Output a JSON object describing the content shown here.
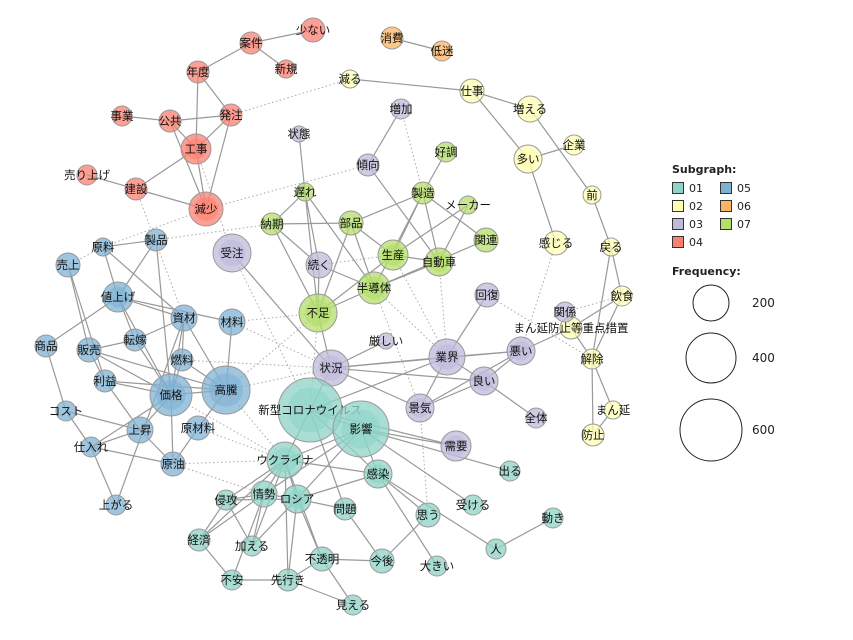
{
  "legend": {
    "subgraph_title": "Subgraph:",
    "frequency_title": "Frequency:",
    "groups": [
      {
        "id": "01",
        "color": "#8dd3c7"
      },
      {
        "id": "02",
        "color": "#ffffb3"
      },
      {
        "id": "03",
        "color": "#bebada"
      },
      {
        "id": "04",
        "color": "#fb8072"
      },
      {
        "id": "05",
        "color": "#80b1d3"
      },
      {
        "id": "06",
        "color": "#fdb462"
      },
      {
        "id": "07",
        "color": "#b3de69"
      }
    ],
    "frequency_values": [
      "200",
      "400",
      "600"
    ]
  },
  "nodes": [
    {
      "label": "少ない",
      "group": "04"
    },
    {
      "label": "案件",
      "group": "04"
    },
    {
      "label": "新規",
      "group": "04"
    },
    {
      "label": "年度",
      "group": "04"
    },
    {
      "label": "発注",
      "group": "04"
    },
    {
      "label": "事業",
      "group": "04"
    },
    {
      "label": "公共",
      "group": "04"
    },
    {
      "label": "工事",
      "group": "04"
    },
    {
      "label": "売り上げ",
      "group": "04"
    },
    {
      "label": "建設",
      "group": "04"
    },
    {
      "label": "減少",
      "group": "04"
    },
    {
      "label": "消費",
      "group": "06"
    },
    {
      "label": "低迷",
      "group": "06"
    },
    {
      "label": "減る",
      "group": "02"
    },
    {
      "label": "仕事",
      "group": "02"
    },
    {
      "label": "増える",
      "group": "02"
    },
    {
      "label": "企業",
      "group": "02"
    },
    {
      "label": "多い",
      "group": "02"
    },
    {
      "label": "前",
      "group": "02"
    },
    {
      "label": "感じる",
      "group": "02"
    },
    {
      "label": "戻る",
      "group": "02"
    },
    {
      "label": "飲食",
      "group": "02"
    },
    {
      "label": "まん延防止等重点措置",
      "group": "02"
    },
    {
      "label": "解除",
      "group": "02"
    },
    {
      "label": "まん延",
      "group": "02"
    },
    {
      "label": "防止",
      "group": "02"
    },
    {
      "label": "増加",
      "group": "03"
    },
    {
      "label": "状態",
      "group": "03"
    },
    {
      "label": "傾向",
      "group": "03"
    },
    {
      "label": "受注",
      "group": "03"
    },
    {
      "label": "続く",
      "group": "03"
    },
    {
      "label": "厳しい",
      "group": "03"
    },
    {
      "label": "状況",
      "group": "03"
    },
    {
      "label": "回復",
      "group": "03"
    },
    {
      "label": "関係",
      "group": "03"
    },
    {
      "label": "業界",
      "group": "03"
    },
    {
      "label": "悪い",
      "group": "03"
    },
    {
      "label": "良い",
      "group": "03"
    },
    {
      "label": "景気",
      "group": "03"
    },
    {
      "label": "全体",
      "group": "03"
    },
    {
      "label": "需要",
      "group": "03"
    },
    {
      "label": "好調",
      "group": "07"
    },
    {
      "label": "遅れ",
      "group": "07"
    },
    {
      "label": "製造",
      "group": "07"
    },
    {
      "label": "メーカー",
      "group": "07"
    },
    {
      "label": "納期",
      "group": "07"
    },
    {
      "label": "部品",
      "group": "07"
    },
    {
      "label": "生産",
      "group": "07"
    },
    {
      "label": "関連",
      "group": "07"
    },
    {
      "label": "自動車",
      "group": "07"
    },
    {
      "label": "半導体",
      "group": "07"
    },
    {
      "label": "不足",
      "group": "07"
    },
    {
      "label": "製品",
      "group": "05"
    },
    {
      "label": "原料",
      "group": "05"
    },
    {
      "label": "売上",
      "group": "05"
    },
    {
      "label": "値上げ",
      "group": "05"
    },
    {
      "label": "資材",
      "group": "05"
    },
    {
      "label": "材料",
      "group": "05"
    },
    {
      "label": "商品",
      "group": "05"
    },
    {
      "label": "転嫁",
      "group": "05"
    },
    {
      "label": "販売",
      "group": "05"
    },
    {
      "label": "燃料",
      "group": "05"
    },
    {
      "label": "利益",
      "group": "05"
    },
    {
      "label": "価格",
      "group": "05"
    },
    {
      "label": "高騰",
      "group": "05"
    },
    {
      "label": "コスト",
      "group": "05"
    },
    {
      "label": "上昇",
      "group": "05"
    },
    {
      "label": "原材料",
      "group": "05"
    },
    {
      "label": "仕入れ",
      "group": "05"
    },
    {
      "label": "原油",
      "group": "05"
    },
    {
      "label": "上がる",
      "group": "05"
    },
    {
      "label": "新型コロナウイルス",
      "group": "01"
    },
    {
      "label": "影響",
      "group": "01"
    },
    {
      "label": "ウクライナ",
      "group": "01"
    },
    {
      "label": "感染",
      "group": "01"
    },
    {
      "label": "出る",
      "group": "01"
    },
    {
      "label": "情勢",
      "group": "01"
    },
    {
      "label": "ロシア",
      "group": "01"
    },
    {
      "label": "侵攻",
      "group": "01"
    },
    {
      "label": "問題",
      "group": "01"
    },
    {
      "label": "受ける",
      "group": "01"
    },
    {
      "label": "思う",
      "group": "01"
    },
    {
      "label": "動き",
      "group": "01"
    },
    {
      "label": "人",
      "group": "01"
    },
    {
      "label": "経済",
      "group": "01"
    },
    {
      "label": "加える",
      "group": "01"
    },
    {
      "label": "不透明",
      "group": "01"
    },
    {
      "label": "今後",
      "group": "01"
    },
    {
      "label": "大きい",
      "group": "01"
    },
    {
      "label": "不安",
      "group": "01"
    },
    {
      "label": "先行き",
      "group": "01"
    },
    {
      "label": "見える",
      "group": "01"
    }
  ],
  "edges_solid": [
    [
      "少ない",
      "案件"
    ],
    [
      "案件",
      "年度"
    ],
    [
      "案件",
      "新規"
    ],
    [
      "年度",
      "発注"
    ],
    [
      "年度",
      "工事"
    ],
    [
      "発注",
      "公共"
    ],
    [
      "事業",
      "公共"
    ],
    [
      "公共",
      "工事"
    ],
    [
      "公共",
      "減少"
    ],
    [
      "発注",
      "工事"
    ],
    [
      "発注",
      "減少"
    ],
    [
      "工事",
      "減少"
    ],
    [
      "工事",
      "建設"
    ],
    [
      "売り上げ",
      "建設"
    ],
    [
      "建設",
      "減少"
    ],
    [
      "消費",
      "低迷"
    ],
    [
      "減る",
      "仕事"
    ],
    [
      "仕事",
      "増える"
    ],
    [
      "仕事",
      "多い"
    ],
    [
      "多い",
      "企業"
    ],
    [
      "多い",
      "感じる"
    ],
    [
      "増える",
      "前"
    ],
    [
      "前",
      "戻る"
    ],
    [
      "戻る",
      "飲食"
    ],
    [
      "戻る",
      "解除"
    ],
    [
      "飲食",
      "解除"
    ],
    [
      "飲食",
      "まん延防止等重点措置"
    ],
    [
      "解除",
      "まん延防止等重点措置"
    ],
    [
      "解除",
      "まん延"
    ],
    [
      "解除",
      "防止"
    ],
    [
      "まん延",
      "防止"
    ],
    [
      "関係",
      "まん延防止等重点措置"
    ],
    [
      "悪い",
      "まん延防止等重点措置"
    ],
    [
      "増加",
      "傾向"
    ],
    [
      "傾向",
      "自動車"
    ],
    [
      "状態",
      "遅れ"
    ],
    [
      "遅れ",
      "納期"
    ],
    [
      "遅れ",
      "不足"
    ],
    [
      "遅れ",
      "続く"
    ],
    [
      "遅れ",
      "半導体"
    ],
    [
      "納期",
      "部品"
    ],
    [
      "納期",
      "続く"
    ],
    [
      "納期",
      "不足"
    ],
    [
      "部品",
      "製造"
    ],
    [
      "部品",
      "生産"
    ],
    [
      "部品",
      "半導体"
    ],
    [
      "部品",
      "不足"
    ],
    [
      "製造",
      "好調"
    ],
    [
      "製造",
      "生産"
    ],
    [
      "製造",
      "半導体"
    ],
    [
      "製造",
      "自動車"
    ],
    [
      "製造",
      "関連"
    ],
    [
      "メーカー",
      "生産"
    ],
    [
      "メーカー",
      "自動車"
    ],
    [
      "半導体",
      "自動車"
    ],
    [
      "半導体",
      "関連"
    ],
    [
      "生産",
      "自動車"
    ],
    [
      "半導体",
      "不足"
    ],
    [
      "生産",
      "不足"
    ],
    [
      "続く",
      "半導体"
    ],
    [
      "続く",
      "不足"
    ],
    [
      "受注",
      "状況"
    ],
    [
      "不足",
      "状況"
    ],
    [
      "厳しい",
      "状況"
    ],
    [
      "状況",
      "業界"
    ],
    [
      "状況",
      "悪い"
    ],
    [
      "状況",
      "良い"
    ],
    [
      "状況",
      "景気"
    ],
    [
      "業界",
      "回復"
    ],
    [
      "業界",
      "悪い"
    ],
    [
      "業界",
      "良い"
    ],
    [
      "業界",
      "景気"
    ],
    [
      "良い",
      "景気"
    ],
    [
      "悪い",
      "景気"
    ],
    [
      "良い",
      "全体"
    ],
    [
      "悪い",
      "良い"
    ],
    [
      "原料",
      "製品"
    ],
    [
      "原料",
      "値上げ"
    ],
    [
      "原料",
      "資材"
    ],
    [
      "製品",
      "値上げ"
    ],
    [
      "製品",
      "価格"
    ],
    [
      "売上",
      "販売"
    ],
    [
      "売上",
      "利益"
    ],
    [
      "値上げ",
      "商品"
    ],
    [
      "値上げ",
      "資材"
    ],
    [
      "値上げ",
      "材料"
    ],
    [
      "値上げ",
      "転嫁"
    ],
    [
      "値上げ",
      "価格"
    ],
    [
      "資材",
      "価格"
    ],
    [
      "資材",
      "高騰"
    ],
    [
      "資材",
      "燃料"
    ],
    [
      "資材",
      "転嫁"
    ],
    [
      "材料",
      "高騰"
    ],
    [
      "転嫁",
      "価格"
    ],
    [
      "転嫁",
      "販売"
    ],
    [
      "販売",
      "価格"
    ],
    [
      "販売",
      "高騰"
    ],
    [
      "販売",
      "利益"
    ],
    [
      "商品",
      "コスト"
    ],
    [
      "利益",
      "価格"
    ],
    [
      "利益",
      "上昇"
    ],
    [
      "価格",
      "高騰"
    ],
    [
      "価格",
      "上昇"
    ],
    [
      "価格",
      "原油"
    ],
    [
      "価格",
      "燃料"
    ],
    [
      "高騰",
      "原材料"
    ],
    [
      "高騰",
      "利益"
    ],
    [
      "上昇",
      "コスト"
    ],
    [
      "上昇",
      "仕入れ"
    ],
    [
      "コスト",
      "仕入れ"
    ],
    [
      "仕入れ",
      "上がる"
    ],
    [
      "上昇",
      "原油"
    ],
    [
      "原材料",
      "原油"
    ],
    [
      "仕入れ",
      "原油"
    ],
    [
      "上がる",
      "資材"
    ],
    [
      "価格",
      "仕入れ"
    ],
    [
      "高騰",
      "燃料"
    ],
    [
      "新型コロナウイルス",
      "影響"
    ],
    [
      "新型コロナウイルス",
      "ウクライナ"
    ],
    [
      "新型コロナウイルス",
      "感染"
    ],
    [
      "新型コロナウイルス",
      "状況"
    ],
    [
      "新型コロナウイルス",
      "需要"
    ],
    [
      "新型コロナウイルス",
      "業界"
    ],
    [
      "影響",
      "ウクライナ"
    ],
    [
      "影響",
      "感染"
    ],
    [
      "影響",
      "需要"
    ],
    [
      "影響",
      "出る"
    ],
    [
      "影響",
      "受ける"
    ],
    [
      "影響",
      "ロシア"
    ],
    [
      "影響",
      "情勢"
    ],
    [
      "ウクライナ",
      "情勢"
    ],
    [
      "ウクライナ",
      "ロシア"
    ],
    [
      "ウクライナ",
      "侵攻"
    ],
    [
      "ウクライナ",
      "感染"
    ],
    [
      "ウクライナ",
      "加える"
    ],
    [
      "ウクライナ",
      "先行き"
    ],
    [
      "ウクライナ",
      "不透明"
    ],
    [
      "ウクライナ",
      "経済"
    ],
    [
      "情勢",
      "ロシア"
    ],
    [
      "情勢",
      "侵攻"
    ],
    [
      "情勢",
      "不安"
    ],
    [
      "情勢",
      "加える"
    ],
    [
      "情勢",
      "経済"
    ],
    [
      "ロシア",
      "侵攻"
    ],
    [
      "ロシア",
      "感染"
    ],
    [
      "ロシア",
      "問題"
    ],
    [
      "ロシア",
      "不透明"
    ],
    [
      "ロシア",
      "先行き"
    ],
    [
      "ロシア",
      "加える"
    ],
    [
      "侵攻",
      "経済"
    ],
    [
      "侵攻",
      "加える"
    ],
    [
      "経済",
      "不安"
    ],
    [
      "不安",
      "先行き"
    ],
    [
      "先行き",
      "不透明"
    ],
    [
      "先行き",
      "見える"
    ],
    [
      "不透明",
      "今後"
    ],
    [
      "不透明",
      "見える"
    ],
    [
      "問題",
      "今後"
    ],
    [
      "新型コロナウイルス",
      "問題"
    ],
    [
      "感染",
      "思う"
    ],
    [
      "感染",
      "大きい"
    ],
    [
      "感染",
      "人"
    ],
    [
      "人",
      "動き"
    ],
    [
      "思う",
      "今後"
    ]
  ],
  "edges_dotted": [
    [
      "減る",
      "発注"
    ],
    [
      "減少",
      "傾向"
    ],
    [
      "減少",
      "原料"
    ],
    [
      "納期",
      "製品"
    ],
    [
      "建設",
      "資材"
    ],
    [
      "工事",
      "受注"
    ],
    [
      "増加",
      "製造"
    ],
    [
      "原料",
      "売上"
    ],
    [
      "材料",
      "不足"
    ],
    [
      "材料",
      "状況"
    ],
    [
      "高騰",
      "不足"
    ],
    [
      "高騰",
      "状況"
    ],
    [
      "高騰",
      "ウクライナ"
    ],
    [
      "原油",
      "ウクライナ"
    ],
    [
      "原油",
      "情勢"
    ],
    [
      "原材料",
      "ウクライナ"
    ],
    [
      "受注",
      "新型コロナウイルス"
    ],
    [
      "価格",
      "ウクライナ"
    ],
    [
      "生産",
      "続く"
    ],
    [
      "不足",
      "新型コロナウイルス"
    ],
    [
      "半導体",
      "景気"
    ],
    [
      "自動車",
      "業界"
    ],
    [
      "回復",
      "解除"
    ],
    [
      "感じる",
      "悪い"
    ],
    [
      "関係",
      "飲食"
    ],
    [
      "業界",
      "新型コロナウイルス"
    ],
    [
      "景気",
      "思う"
    ],
    [
      "燃料",
      "状況"
    ],
    [
      "半導体",
      "業界"
    ],
    [
      "生産",
      "業界"
    ]
  ]
}
